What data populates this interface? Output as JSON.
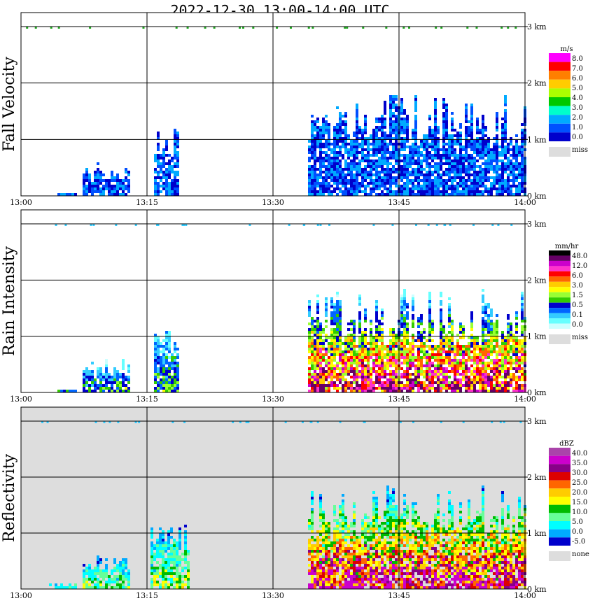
{
  "title": "2022-12-30  13:00-14:00 UTC",
  "chart_data": [
    {
      "type": "heatmap",
      "ylabel": "Fall Velocity",
      "xticks": [
        "13:00",
        "13:15",
        "13:30",
        "13:45",
        "14:00"
      ],
      "yticks": [
        "0 km",
        "1 km",
        "2 km",
        "3 km"
      ],
      "ylim": [
        0,
        3
      ],
      "xlim": [
        "13:00",
        "14:00"
      ],
      "grid": true,
      "background": "#ffffff",
      "colorbar": {
        "unit": "m/s",
        "labels": [
          "8.0",
          "7.0",
          "6.0",
          "5.0",
          "4.0",
          "3.0",
          "2.0",
          "1.0",
          "0.0"
        ],
        "colors": [
          "#ff00ff",
          "#ff0000",
          "#ff7f00",
          "#ffcc00",
          "#aaff00",
          "#00c800",
          "#00ffcc",
          "#00aaff",
          "#0050ff",
          "#0000cc"
        ],
        "missing_label": "miss"
      },
      "cloud": "fall"
    },
    {
      "type": "heatmap",
      "ylabel": "Rain Intensity",
      "xticks": [
        "13:00",
        "13:15",
        "13:30",
        "13:45",
        "14:00"
      ],
      "yticks": [
        "0 km",
        "1 km",
        "2 km",
        "3 km"
      ],
      "ylim": [
        0,
        3
      ],
      "xlim": [
        "13:00",
        "14:00"
      ],
      "grid": true,
      "background": "#ffffff",
      "colorbar": {
        "unit": "mm/hr",
        "labels": [
          "48.0",
          "12.0",
          "6.0",
          "3.0",
          "1.5",
          "0.5",
          "0.1",
          "0.0"
        ],
        "colors": [
          "#000000",
          "#660066",
          "#cc00cc",
          "#ff33cc",
          "#ff0000",
          "#ff6600",
          "#ffcc00",
          "#ffff00",
          "#99ff33",
          "#33cc00",
          "#0000cc",
          "#0066ff",
          "#33ccff",
          "#66ffff",
          "#ccffff"
        ],
        "missing_label": "miss"
      },
      "cloud": "rain"
    },
    {
      "type": "heatmap",
      "ylabel": "Reflectivity",
      "xticks": [
        "13:00",
        "13:15",
        "13:30",
        "13:45",
        "14:00"
      ],
      "yticks": [
        "0 km",
        "1 km",
        "2 km",
        "3 km"
      ],
      "ylim": [
        0,
        3
      ],
      "xlim": [
        "13:00",
        "14:00"
      ],
      "grid": true,
      "background": "#dddddd",
      "colorbar": {
        "unit": "dBZ",
        "labels": [
          "40.0",
          "35.0",
          "30.0",
          "25.0",
          "20.0",
          "15.0",
          "10.0",
          "5.0",
          "0.0",
          "-5.0"
        ],
        "colors": [
          "#aa44aa",
          "#cc00cc",
          "#880088",
          "#dd0000",
          "#ff6600",
          "#ffcc00",
          "#ffff00",
          "#00bb00",
          "#66ff99",
          "#00ffff",
          "#00aaff",
          "#0000cc"
        ],
        "missing_label": "none"
      },
      "cloud": "refl"
    }
  ]
}
